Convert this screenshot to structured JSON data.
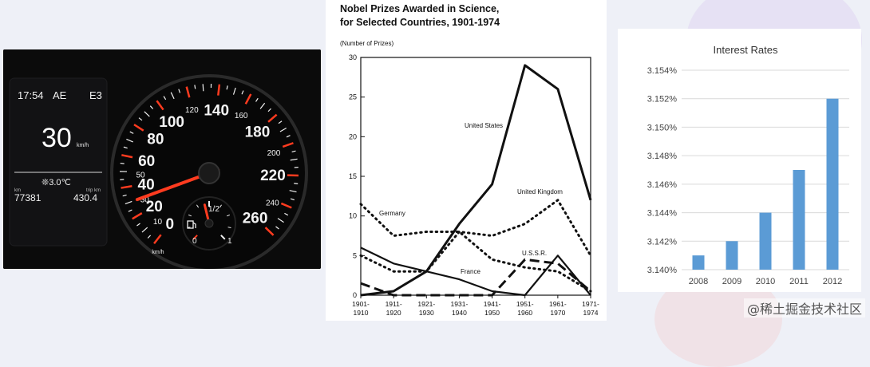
{
  "dashboard": {
    "time": "17:54",
    "mode": "AE",
    "gear": "E3",
    "speed": "30",
    "speed_unit": "km/h",
    "temperature": "❊3.0℃",
    "odometer_unit": "km",
    "odometer": "77381",
    "trip_unit": "trip km",
    "trip": "430.4",
    "speedometer": {
      "ticks": [
        "0",
        "10",
        "20",
        "30",
        "40",
        "50",
        "60",
        "80",
        "100",
        "120",
        "140",
        "160",
        "180",
        "200",
        "220",
        "240",
        "260"
      ],
      "major": [
        "0",
        "20",
        "40",
        "60",
        "80",
        "100",
        "140",
        "180",
        "220",
        "260"
      ],
      "small_unit": "km/h",
      "needle_value": 30
    },
    "fuel_gauge": {
      "labels": [
        "0",
        "1/2",
        "1"
      ],
      "level_fraction": 0.45,
      "icon": "fuel-pump-icon"
    },
    "colors": {
      "needle": "#ff3b1f",
      "display_text": "#f2f2f2",
      "background": "#0b0b0b"
    }
  },
  "chart_data": [
    {
      "type": "line",
      "title": "Nobel Prizes Awarded in Science,",
      "subtitle": "for Selected Countries, 1901-1974",
      "ylabel": "(Number of Prizes)",
      "xlabel": "",
      "ylim": [
        0,
        30
      ],
      "yticks": [
        "0",
        "5",
        "10",
        "15",
        "20",
        "25",
        "30"
      ],
      "categories": [
        [
          "1901-",
          "1910"
        ],
        [
          "1911-",
          "1920"
        ],
        [
          "1921-",
          "1930"
        ],
        [
          "1931-",
          "1940"
        ],
        [
          "1941-",
          "1950"
        ],
        [
          "1951-",
          "1960"
        ],
        [
          "1961-",
          "1970"
        ],
        [
          "1971-",
          "1974"
        ]
      ],
      "series": [
        {
          "name": "United States",
          "style": "solid-thick",
          "values": [
            0,
            0.5,
            3,
            9,
            14,
            29,
            26,
            12
          ]
        },
        {
          "name": "United Kingdom",
          "style": "dotted",
          "values": [
            5,
            3,
            3,
            8,
            7.5,
            9,
            12,
            5
          ]
        },
        {
          "name": "Germany",
          "style": "dotted",
          "values": [
            11.5,
            7.5,
            8,
            8,
            4.5,
            3.5,
            3,
            0.5
          ]
        },
        {
          "name": "France",
          "style": "solid",
          "values": [
            6,
            4,
            3,
            2,
            0.5,
            0,
            5,
            0
          ]
        },
        {
          "name": "U.S.S.R.",
          "style": "dashed",
          "values": [
            1.5,
            0,
            0,
            0,
            0,
            4.5,
            4,
            0.5
          ]
        }
      ],
      "series_labels": [
        "United States",
        "United Kingdom",
        "Germany",
        "France",
        "U.S.S.R."
      ],
      "grid": false,
      "legend": "inline-labels"
    },
    {
      "type": "bar",
      "title": "Interest Rates",
      "categories": [
        "2008",
        "2009",
        "2010",
        "2011",
        "2012"
      ],
      "values": [
        3.141,
        3.142,
        3.144,
        3.147,
        3.152
      ],
      "ylim": [
        3.14,
        3.154
      ],
      "yticks": [
        "3.140%",
        "3.142%",
        "3.144%",
        "3.146%",
        "3.148%",
        "3.150%",
        "3.152%",
        "3.154%"
      ],
      "xlabel": "",
      "ylabel": "",
      "grid": true,
      "bar_color": "#5b9bd5"
    }
  ],
  "watermark": "@稀土掘金技术社区"
}
